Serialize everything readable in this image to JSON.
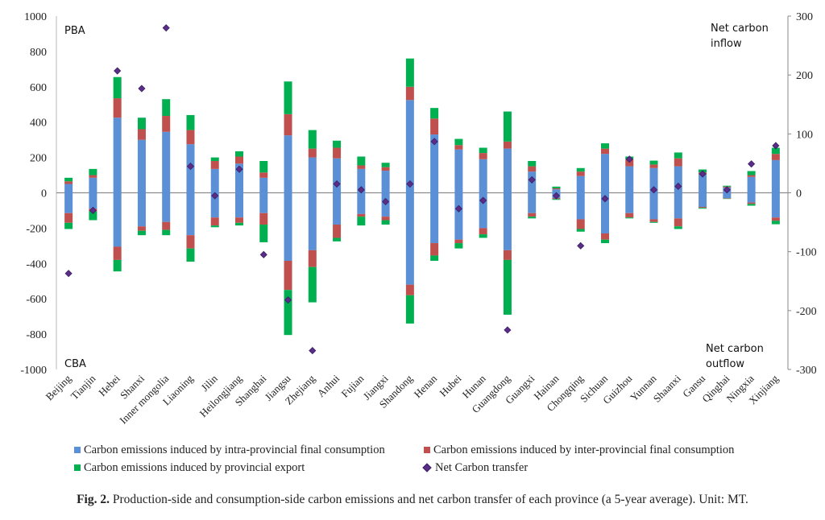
{
  "chart_data": {
    "type": "bar",
    "subtype": "stacked-diverging-bar-with-scatter",
    "title": "",
    "xlabel": "",
    "ylabel_left": "",
    "ylabel_right": "",
    "ylim_left": [
      -1000,
      1000
    ],
    "ylim_right": [
      -300,
      300
    ],
    "yticks_left": [
      1000,
      800,
      600,
      400,
      200,
      0,
      -200,
      -400,
      -600,
      -800,
      -1000
    ],
    "yticks_right": [
      300,
      200,
      100,
      0,
      -100,
      -200,
      -300
    ],
    "grid": false,
    "annotations": {
      "top_left": "PBA",
      "bottom_left": "CBA",
      "top_right": [
        "Net carbon",
        "inflow"
      ],
      "bottom_right": [
        "Net carbon",
        "outflow"
      ]
    },
    "categories": [
      "Beijing",
      "Tianjin",
      "Hebei",
      "Shanxi",
      "Inner mongolia",
      "Liaoning",
      "Jilin",
      "Heilongjiang",
      "Shanghai",
      "Jiangsu",
      "Zhejiang",
      "Anhui",
      "Fujian",
      "Jiangxi",
      "Shandong",
      "Henan",
      "Hubei",
      "Hunan",
      "Guangdong",
      "Guangxi",
      "Hainan",
      "Chongqing",
      "Sichuan",
      "Guizhou",
      "Yunnan",
      "Shaanxi",
      "Gansu",
      "Qinghai",
      "Ningxia",
      "Xinjiang"
    ],
    "series": [
      {
        "name": "Carbon emissions induced by intra-provincial final consumption",
        "color": "#5b8fd6",
        "axis": "left",
        "pba_values": [
          50,
          85,
          425,
          300,
          345,
          275,
          135,
          165,
          85,
          325,
          200,
          195,
          135,
          125,
          525,
          330,
          245,
          190,
          250,
          120,
          20,
          95,
          220,
          150,
          140,
          150,
          105,
          30,
          90,
          185
        ],
        "cba_values": [
          -115,
          -90,
          -305,
          -190,
          -165,
          -240,
          -140,
          -140,
          -115,
          -385,
          -325,
          -180,
          -120,
          -135,
          -520,
          -285,
          -265,
          -200,
          -325,
          -115,
          -30,
          -150,
          -230,
          -115,
          -150,
          -145,
          -80,
          -30,
          -55,
          -140
        ]
      },
      {
        "name": "Carbon emissions induced by inter-provincial final consumption",
        "color": "#c0504d",
        "axis": "left",
        "pba_values": [
          15,
          15,
          110,
          60,
          90,
          80,
          45,
          40,
          30,
          120,
          50,
          60,
          20,
          20,
          75,
          90,
          25,
          35,
          40,
          30,
          5,
          25,
          30,
          40,
          20,
          45,
          10,
          5,
          10,
          35
        ],
        "cba_values": [
          -55,
          -15,
          -75,
          -25,
          -45,
          -75,
          -45,
          -30,
          -65,
          -165,
          -95,
          -75,
          -15,
          -20,
          -60,
          -70,
          -20,
          -35,
          -55,
          -20,
          -5,
          -55,
          -35,
          -25,
          -15,
          -45,
          -5,
          -3,
          -8,
          -18
        ]
      },
      {
        "name": "Carbon emissions induced by provincial export",
        "color": "#00b050",
        "axis": "left",
        "pba_values": [
          20,
          35,
          120,
          65,
          95,
          85,
          20,
          30,
          65,
          185,
          105,
          40,
          50,
          25,
          160,
          60,
          35,
          30,
          170,
          30,
          10,
          20,
          30,
          15,
          22,
          33,
          17,
          5,
          23,
          35
        ],
        "cba_values": [
          -35,
          -50,
          -65,
          -25,
          -30,
          -75,
          -10,
          -15,
          -100,
          -255,
          -200,
          -20,
          -50,
          -25,
          -160,
          -30,
          -30,
          -20,
          -310,
          -10,
          -5,
          -15,
          -20,
          -5,
          -5,
          -15,
          -5,
          -2,
          -10,
          -20
        ]
      },
      {
        "name": "Net Carbon transfer",
        "type": "scatter",
        "marker": "diamond",
        "color": "#5b2d86",
        "axis": "right",
        "values": [
          -137,
          -30,
          207,
          177,
          280,
          45,
          -5,
          40,
          -105,
          -182,
          -268,
          15,
          5,
          -15,
          15,
          87,
          -27,
          -13,
          -233,
          22,
          -5,
          -90,
          -10,
          57,
          5,
          11,
          32,
          5,
          49,
          80
        ]
      }
    ]
  },
  "legend": {
    "items": [
      {
        "label": "Carbon emissions induced by intra-provincial final consumption",
        "color": "#5b8fd6"
      },
      {
        "label": "Carbon emissions induced by inter-provincial final consumption",
        "color": "#c0504d"
      },
      {
        "label": "Carbon emissions induced by provincial export",
        "color": "#00b050"
      },
      {
        "label": "Net Carbon transfer",
        "color": "#5b2d86"
      }
    ]
  },
  "caption": {
    "label": "Fig. 2.",
    "text": " Production-side and consumption-side carbon emissions and net carbon transfer of each province (a 5-year average). Unit: MT."
  }
}
